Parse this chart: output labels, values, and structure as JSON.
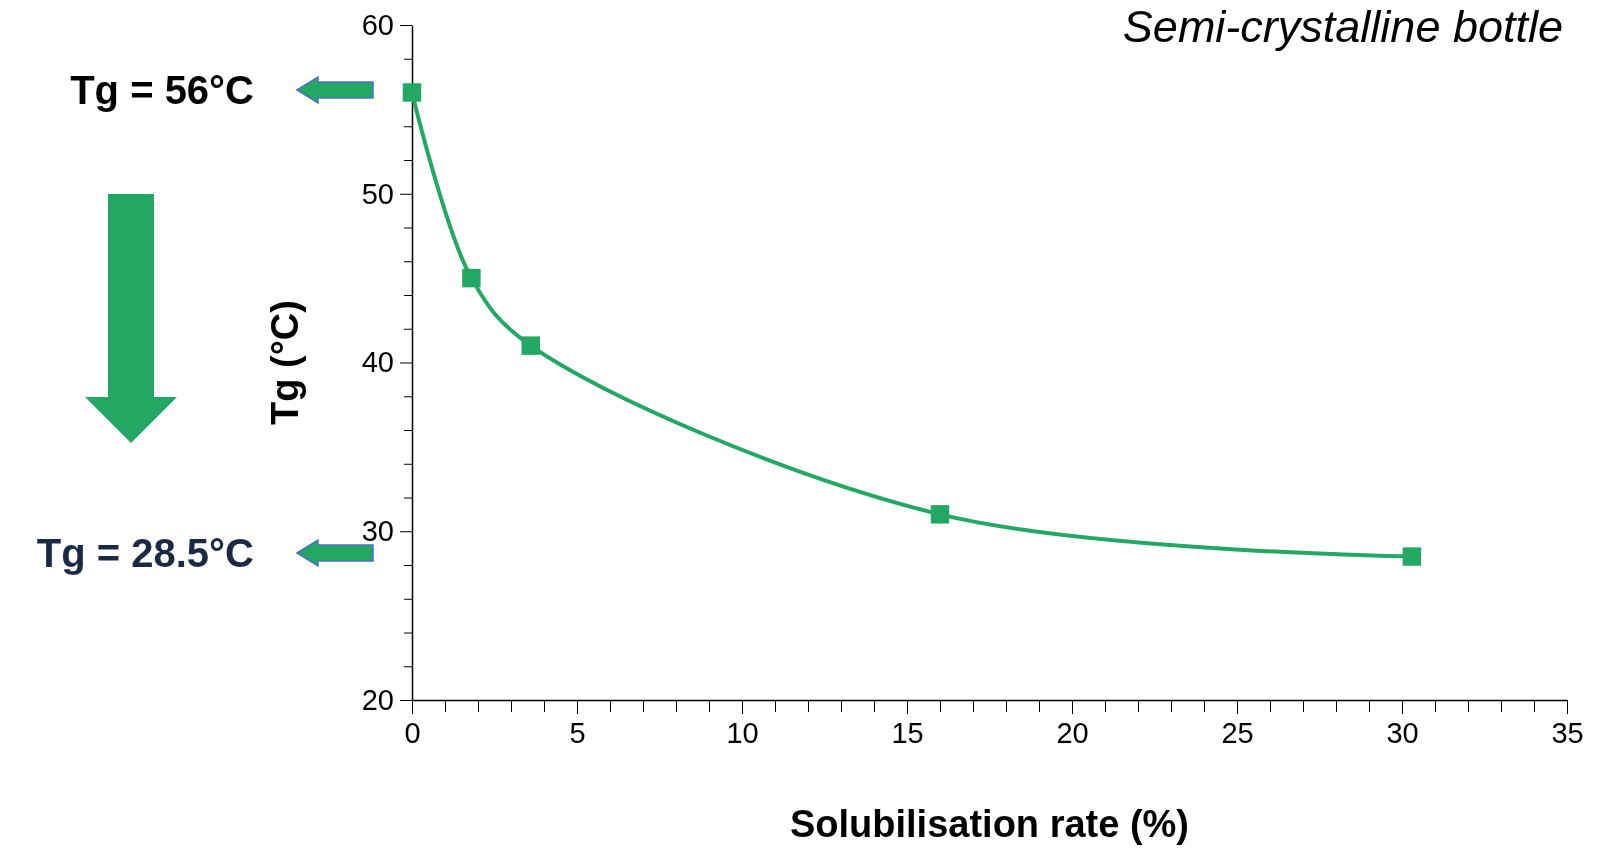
{
  "chart_data": {
    "type": "line",
    "title": "Semi-crystalline bottle",
    "xlabel": "Solubilisation rate (%)",
    "ylabel": "Tg (°C)",
    "x": [
      0,
      1.8,
      3.6,
      16,
      30.3
    ],
    "series": [
      {
        "color": "#22a862",
        "values": [
          56,
          45,
          41,
          31,
          28.5
        ]
      }
    ],
    "xlim": [
      0,
      35
    ],
    "ylim": [
      20,
      60
    ],
    "xticks": [
      0,
      {
        "value": 1,
        "label": null
      },
      {
        "value": 2,
        "label": null
      },
      {
        "value": 3,
        "label": null
      },
      {
        "value": 4,
        "label": null
      },
      5,
      {
        "value": 6,
        "label": null
      },
      {
        "value": 7,
        "label": null
      },
      {
        "value": 8,
        "label": null
      },
      {
        "value": 9,
        "label": null
      },
      10,
      {
        "value": 11,
        "label": null
      },
      {
        "value": 12,
        "label": null
      },
      {
        "value": 13,
        "label": null
      },
      {
        "value": 14,
        "label": null
      },
      15,
      {
        "value": 16,
        "label": null
      },
      {
        "value": 17,
        "label": null
      },
      {
        "value": 18,
        "label": null
      },
      {
        "value": 19,
        "label": null
      },
      20,
      {
        "value": 21,
        "label": null
      },
      {
        "value": 22,
        "label": null
      },
      {
        "value": 23,
        "label": null
      },
      {
        "value": 24,
        "label": null
      },
      25,
      {
        "value": 26,
        "label": null
      },
      {
        "value": 27,
        "label": null
      },
      {
        "value": 28,
        "label": null
      },
      {
        "value": 29,
        "label": null
      },
      30,
      {
        "value": 31,
        "label": null
      },
      {
        "value": 32,
        "label": null
      },
      {
        "value": 33,
        "label": null
      },
      {
        "value": 34,
        "label": null
      },
      35
    ],
    "yticks": [
      20,
      {
        "value": 22,
        "label": null
      },
      {
        "value": 24,
        "label": null
      },
      {
        "value": 26,
        "label": null
      },
      {
        "value": 28,
        "label": null
      },
      30,
      {
        "value": 32,
        "label": null
      },
      {
        "value": 34,
        "label": null
      },
      {
        "value": 36,
        "label": null
      },
      {
        "value": 38,
        "label": null
      },
      40,
      {
        "value": 42,
        "label": null
      },
      {
        "value": 44,
        "label": null
      },
      {
        "value": 46,
        "label": null
      },
      {
        "value": 48,
        "label": null
      },
      50,
      {
        "value": 52,
        "label": null
      },
      {
        "value": 54,
        "label": null
      },
      {
        "value": 56,
        "label": null
      },
      {
        "value": 58,
        "label": null
      },
      60
    ],
    "marker": "square",
    "line_style": "solid",
    "annotations": [
      "Tg = 56°C",
      "Tg = 28.5°C"
    ]
  }
}
